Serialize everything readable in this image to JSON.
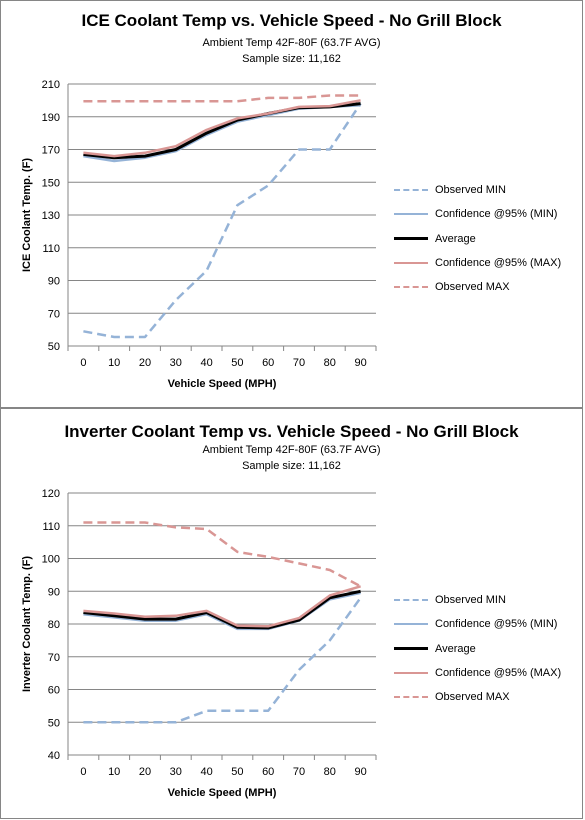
{
  "colors": {
    "observed_min": "#95B3D7",
    "confidence_min": "#95B3D7",
    "average": "#000000",
    "confidence_max": "#D99694",
    "observed_max": "#D99694",
    "grid": "#868686",
    "axis": "#868686"
  },
  "chart_data": [
    {
      "type": "line",
      "title": "ICE Coolant Temp vs. Vehicle Speed - No Grill Block",
      "subtitle": "Ambient Temp 42F-80F (63.7F AVG)",
      "sample_size": "Sample size: 11,162",
      "xlabel": "Vehicle Speed (MPH)",
      "ylabel": "ICE Coolant Temp. (F)",
      "x": [
        0,
        10,
        20,
        30,
        40,
        50,
        60,
        70,
        80,
        90
      ],
      "x_ticks": [
        "0",
        "10",
        "20",
        "30",
        "40",
        "50",
        "60",
        "70",
        "80",
        "90"
      ],
      "y_ticks": [
        "50",
        "70",
        "90",
        "110",
        "130",
        "150",
        "170",
        "190",
        "210"
      ],
      "ylim": [
        50,
        210
      ],
      "grid": "horizontal",
      "legend_position": "right",
      "series": [
        {
          "name": "Observed MIN",
          "style": "dashed",
          "color_key": "observed_min",
          "values": [
            59,
            55.5,
            55.5,
            78,
            96,
            136,
            148,
            170,
            170,
            198
          ]
        },
        {
          "name": "Confidence @95% (MIN)",
          "style": "solid",
          "color_key": "confidence_min",
          "values": [
            166,
            163,
            165,
            169,
            179,
            187,
            191,
            195,
            196,
            197
          ]
        },
        {
          "name": "Average",
          "style": "solid",
          "color_key": "average",
          "values": [
            167,
            165,
            166,
            170,
            180,
            188,
            192,
            195.5,
            196,
            198
          ]
        },
        {
          "name": "Confidence @95% (MAX)",
          "style": "solid",
          "color_key": "confidence_max",
          "values": [
            168,
            166,
            168,
            172,
            182,
            189,
            192,
            196,
            196.5,
            200
          ]
        },
        {
          "name": "Observed MAX",
          "style": "dashed",
          "color_key": "observed_max",
          "values": [
            199.5,
            199.5,
            199.5,
            199.5,
            199.5,
            199.5,
            201.5,
            201.5,
            203,
            203
          ]
        }
      ]
    },
    {
      "type": "line",
      "title": "Inverter Coolant Temp vs. Vehicle Speed - No Grill Block",
      "subtitle": "Ambient Temp 42F-80F (63.7F AVG)",
      "sample_size": "Sample size: 11,162",
      "xlabel": "Vehicle Speed (MPH)",
      "ylabel": "Inverter Coolant Temp. (F)",
      "x": [
        0,
        10,
        20,
        30,
        40,
        50,
        60,
        70,
        80,
        90
      ],
      "x_ticks": [
        "0",
        "10",
        "20",
        "30",
        "40",
        "50",
        "60",
        "70",
        "80",
        "90"
      ],
      "y_ticks": [
        "40",
        "50",
        "60",
        "70",
        "80",
        "90",
        "100",
        "110",
        "120"
      ],
      "ylim": [
        40,
        120
      ],
      "grid": "horizontal",
      "legend_position": "right",
      "series": [
        {
          "name": "Observed MIN",
          "style": "dashed",
          "color_key": "observed_min",
          "values": [
            50,
            50,
            50,
            50,
            53.5,
            53.5,
            53.5,
            66,
            75,
            88
          ]
        },
        {
          "name": "Confidence @95% (MIN)",
          "style": "solid",
          "color_key": "confidence_min",
          "values": [
            83,
            82,
            81,
            81,
            83,
            78.5,
            78.5,
            81,
            87.5,
            89.5
          ]
        },
        {
          "name": "Average",
          "style": "solid",
          "color_key": "average",
          "values": [
            83.5,
            82.5,
            81.5,
            81.5,
            83.5,
            79,
            78.8,
            81.2,
            88,
            90
          ]
        },
        {
          "name": "Confidence @95% (MAX)",
          "style": "solid",
          "color_key": "confidence_max",
          "values": [
            84,
            83.2,
            82.2,
            82.5,
            84,
            79.5,
            79.3,
            81.8,
            88.7,
            91.5
          ]
        },
        {
          "name": "Observed MAX",
          "style": "dashed",
          "color_key": "observed_max",
          "values": [
            111,
            111,
            111,
            109.5,
            109,
            102,
            100.5,
            98.5,
            96.5,
            91.5
          ]
        }
      ]
    }
  ]
}
